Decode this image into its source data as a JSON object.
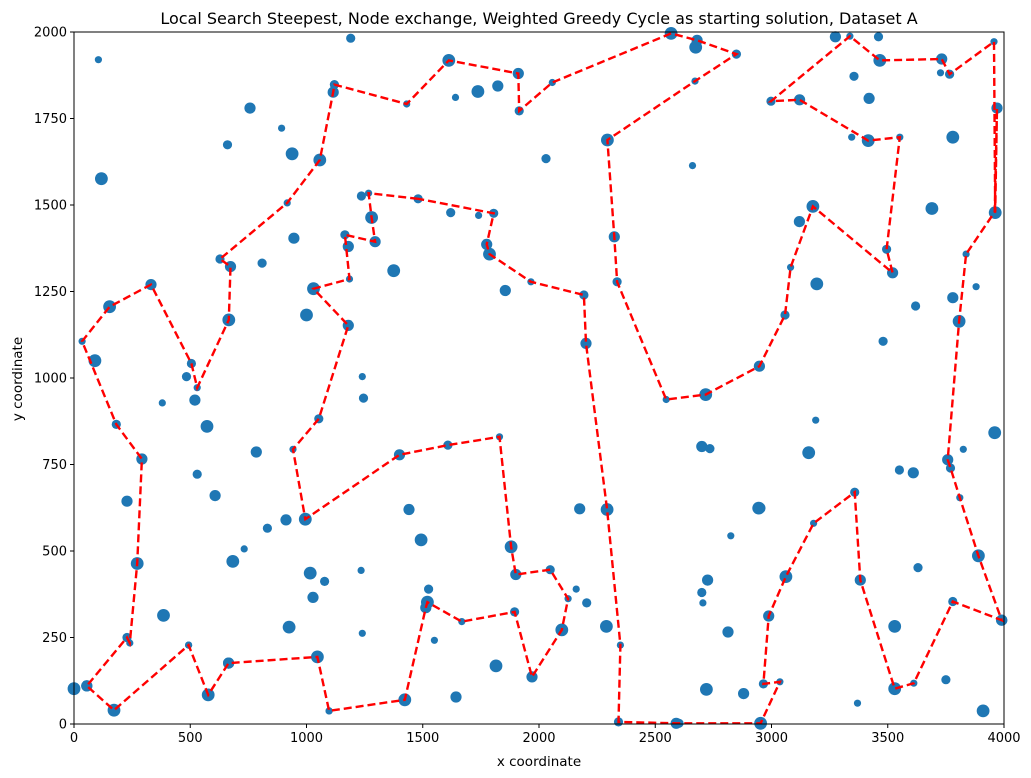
{
  "chart_data": {
    "type": "scatter",
    "title": "Local Search Steepest, Node exchange, Weighted Greedy Cycle as starting solution, Dataset A",
    "xlabel": "x coordinate",
    "ylabel": "y coordinate",
    "xlim": [
      0,
      4000
    ],
    "ylim": [
      0,
      2000
    ],
    "x_ticks": [
      0,
      500,
      1000,
      1500,
      2000,
      2500,
      3000,
      3500,
      4000
    ],
    "y_ticks": [
      0,
      250,
      500,
      750,
      1000,
      1250,
      1500,
      1750,
      2000
    ],
    "grid": false,
    "colors": {
      "points": "#1f77b4",
      "route": "#ff0000"
    },
    "points": [
      [
        0,
        102
      ],
      [
        55,
        110
      ],
      [
        172,
        40
      ],
      [
        493,
        228
      ],
      [
        577,
        84
      ],
      [
        665,
        176
      ],
      [
        1047,
        194
      ],
      [
        1097,
        38
      ],
      [
        1423,
        70
      ],
      [
        1643,
        78
      ],
      [
        2602,
        2
      ],
      [
        2960,
        2
      ],
      [
        3910,
        38
      ],
      [
        2880,
        88
      ],
      [
        3750,
        128
      ],
      [
        3370,
        60
      ],
      [
        3530,
        282
      ],
      [
        3990,
        300
      ],
      [
        1190,
        1982
      ],
      [
        105,
        1920
      ],
      [
        118,
        1576
      ],
      [
        757,
        1780
      ],
      [
        660,
        1674
      ],
      [
        893,
        1722
      ],
      [
        938,
        1648
      ],
      [
        946,
        1404
      ],
      [
        809,
        1332
      ],
      [
        1641,
        1811
      ],
      [
        1737,
        1828
      ],
      [
        1823,
        1844
      ],
      [
        2030,
        1634
      ],
      [
        2660,
        1614
      ],
      [
        2674,
        1956
      ],
      [
        3275,
        1986
      ],
      [
        3460,
        1986
      ],
      [
        3727,
        1882
      ],
      [
        3780,
        1696
      ],
      [
        3420,
        1808
      ],
      [
        3355,
        1872
      ],
      [
        3345,
        1696
      ],
      [
        3690,
        1490
      ],
      [
        3120,
        1452
      ],
      [
        3620,
        1208
      ],
      [
        3880,
        1264
      ],
      [
        3195,
        1272
      ],
      [
        3780,
        1232
      ],
      [
        3480,
        1106
      ],
      [
        3190,
        878
      ],
      [
        3160,
        784
      ],
      [
        3610,
        726
      ],
      [
        3550,
        734
      ],
      [
        3825,
        794
      ],
      [
        3960,
        842
      ],
      [
        2700,
        802
      ],
      [
        2735,
        796
      ],
      [
        2825,
        544
      ],
      [
        2945,
        624
      ],
      [
        2725,
        416
      ],
      [
        2700,
        380
      ],
      [
        2705,
        350
      ],
      [
        2720,
        100
      ],
      [
        2813,
        266
      ],
      [
        1245,
        942
      ],
      [
        1240,
        1004
      ],
      [
        1375,
        1310
      ],
      [
        1855,
        1253
      ],
      [
        1620,
        1478
      ],
      [
        1740,
        1470
      ],
      [
        1000,
        1182
      ],
      [
        1180,
        1380
      ],
      [
        1236,
        1526
      ],
      [
        1235,
        444
      ],
      [
        1016,
        436
      ],
      [
        1028,
        366
      ],
      [
        1078,
        412
      ],
      [
        1240,
        262
      ],
      [
        1493,
        532
      ],
      [
        1441,
        620
      ],
      [
        1525,
        390
      ],
      [
        1550,
        242
      ],
      [
        1815,
        168
      ],
      [
        2175,
        622
      ],
      [
        2205,
        350
      ],
      [
        2160,
        390
      ],
      [
        2290,
        282
      ],
      [
        2950,
        624
      ],
      [
        3630,
        452
      ],
      [
        3900,
        484
      ],
      [
        925,
        280
      ],
      [
        912,
        590
      ],
      [
        832,
        566
      ],
      [
        732,
        506
      ],
      [
        683,
        470
      ],
      [
        607,
        660
      ],
      [
        530,
        722
      ],
      [
        380,
        928
      ],
      [
        572,
        860
      ],
      [
        520,
        936
      ],
      [
        484,
        1004
      ],
      [
        505,
        1042
      ],
      [
        90,
        1050
      ],
      [
        228,
        644
      ],
      [
        272,
        464
      ],
      [
        228,
        250
      ],
      [
        385,
        314
      ],
      [
        784,
        786
      ]
    ],
    "route": [
      [
        1480,
        1518
      ],
      [
        1267,
        1534
      ],
      [
        1280,
        1464
      ],
      [
        1295,
        1394
      ],
      [
        1165,
        1414
      ],
      [
        1185,
        1286
      ],
      [
        1030,
        1258
      ],
      [
        1180,
        1152
      ],
      [
        1053,
        882
      ],
      [
        942,
        794
      ],
      [
        995,
        592
      ],
      [
        1400,
        778
      ],
      [
        1608,
        806
      ],
      [
        1830,
        830
      ],
      [
        1880,
        512
      ],
      [
        1900,
        432
      ],
      [
        2048,
        446
      ],
      [
        2125,
        362
      ],
      [
        2098,
        272
      ],
      [
        1970,
        136
      ],
      [
        1895,
        324
      ],
      [
        1668,
        296
      ],
      [
        1520,
        352
      ],
      [
        1513,
        336
      ],
      [
        1423,
        70
      ],
      [
        1097,
        38
      ],
      [
        1047,
        194
      ],
      [
        665,
        176
      ],
      [
        577,
        84
      ],
      [
        493,
        228
      ],
      [
        172,
        40
      ],
      [
        55,
        110
      ],
      [
        228,
        250
      ],
      [
        240,
        234
      ],
      [
        272,
        464
      ],
      [
        292,
        766
      ],
      [
        182,
        866
      ],
      [
        35,
        1106
      ],
      [
        153,
        1206
      ],
      [
        331,
        1270
      ],
      [
        505,
        1042
      ],
      [
        530,
        972
      ],
      [
        666,
        1168
      ],
      [
        673,
        1322
      ],
      [
        628,
        1344
      ],
      [
        917,
        1506
      ],
      [
        1057,
        1630
      ],
      [
        1115,
        1826
      ],
      [
        1120,
        1848
      ],
      [
        1431,
        1792
      ],
      [
        1612,
        1918
      ],
      [
        1911,
        1880
      ],
      [
        1915,
        1772
      ],
      [
        2057,
        1854
      ],
      [
        2568,
        1996
      ],
      [
        2680,
        1976
      ],
      [
        2849,
        1936
      ],
      [
        2671,
        1858
      ],
      [
        2294,
        1688
      ],
      [
        2324,
        1408
      ],
      [
        2336,
        1278
      ],
      [
        2547,
        938
      ],
      [
        2717,
        952
      ],
      [
        2948,
        1034
      ],
      [
        3058,
        1182
      ],
      [
        3082,
        1320
      ],
      [
        3178,
        1496
      ],
      [
        3521,
        1304
      ],
      [
        3495,
        1372
      ],
      [
        3552,
        1696
      ],
      [
        3416,
        1686
      ],
      [
        3121,
        1804
      ],
      [
        2998,
        1800
      ],
      [
        3337,
        1988
      ],
      [
        3466,
        1918
      ],
      [
        3732,
        1922
      ],
      [
        3766,
        1878
      ],
      [
        3957,
        1972
      ],
      [
        3962,
        1478
      ],
      [
        3970,
        1780
      ],
      [
        3960,
        1480
      ],
      [
        3837,
        1358
      ],
      [
        3807,
        1164
      ],
      [
        3758,
        764
      ],
      [
        3770,
        740
      ],
      [
        3810,
        654
      ],
      [
        3890,
        486
      ],
      [
        3990,
        300
      ],
      [
        3780,
        354
      ],
      [
        3612,
        118
      ],
      [
        3530,
        102
      ],
      [
        3382,
        416
      ],
      [
        3358,
        670
      ],
      [
        3181,
        580
      ],
      [
        3062,
        426
      ],
      [
        2988,
        312
      ],
      [
        2965,
        116
      ],
      [
        3036,
        122
      ],
      [
        2953,
        2
      ],
      [
        2590,
        2
      ],
      [
        2342,
        6
      ],
      [
        2350,
        228
      ],
      [
        2293,
        620
      ],
      [
        2202,
        1100
      ],
      [
        2193,
        1240
      ],
      [
        1965,
        1278
      ],
      [
        1787,
        1358
      ],
      [
        1775,
        1386
      ],
      [
        1805,
        1476
      ]
    ]
  }
}
